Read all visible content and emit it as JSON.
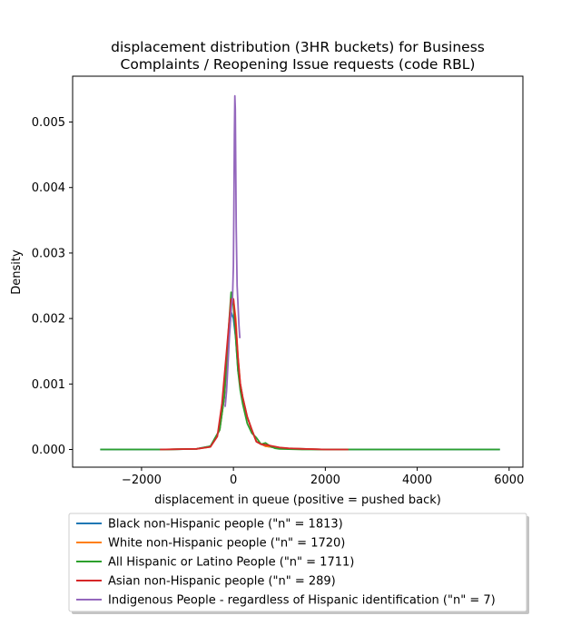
{
  "chart_data": {
    "type": "line",
    "title": "displacement distribution (3HR buckets) for Business\nComplaints / Reopening Issue requests (code RBL)",
    "xlabel": "displacement in queue (positive = pushed back)",
    "ylabel": "Density",
    "xlim": [
      -3500,
      6300
    ],
    "ylim": [
      -0.00027,
      0.0057
    ],
    "xticks": [
      -2000,
      0,
      2000,
      4000,
      6000
    ],
    "xtick_labels": [
      "−2000",
      "0",
      "2000",
      "4000",
      "6000"
    ],
    "yticks": [
      0.0,
      0.001,
      0.002,
      0.003,
      0.004,
      0.005
    ],
    "ytick_labels": [
      "0.000",
      "0.001",
      "0.002",
      "0.003",
      "0.004",
      "0.005"
    ],
    "grid": false,
    "legend_position": "below plot",
    "series": [
      {
        "name": "Black non-Hispanic people (\"n\" = 1813)",
        "color": "#1f77b4",
        "x": [
          -2900,
          -1500,
          -800,
          -500,
          -300,
          -200,
          -100,
          -50,
          0,
          50,
          100,
          150,
          200,
          300,
          400,
          500,
          700,
          1000,
          1500,
          2000,
          3000,
          4000,
          5000,
          5800
        ],
        "y": [
          0,
          0,
          1e-05,
          5e-05,
          0.0003,
          0.0008,
          0.0017,
          0.0021,
          0.002,
          0.0017,
          0.0012,
          0.001,
          0.0008,
          0.0005,
          0.0003,
          0.00012,
          5e-05,
          2e-05,
          1e-05,
          0,
          0,
          0,
          0,
          0
        ]
      },
      {
        "name": "White non-Hispanic people (\"n\" = 1720)",
        "color": "#ff7f0e",
        "x": [
          -1600,
          -800,
          -500,
          -300,
          -200,
          -100,
          -50,
          0,
          50,
          100,
          150,
          200,
          300,
          400,
          500,
          700,
          1000,
          1500,
          2000,
          2500
        ],
        "y": [
          0,
          1e-05,
          4e-05,
          0.0003,
          0.0008,
          0.0018,
          0.0022,
          0.0023,
          0.002,
          0.0014,
          0.001,
          0.0008,
          0.0005,
          0.0003,
          0.00012,
          5e-05,
          2e-05,
          1e-05,
          0,
          0
        ]
      },
      {
        "name": "All Hispanic or Latino People (\"n\" = 1711)",
        "color": "#2ca02c",
        "x": [
          -2900,
          -1500,
          -800,
          -500,
          -300,
          -200,
          -100,
          -50,
          0,
          50,
          100,
          150,
          200,
          300,
          400,
          500,
          600,
          700,
          800,
          900,
          1000,
          1500,
          2000,
          3000,
          4000,
          5000,
          5800
        ],
        "y": [
          0,
          0,
          1e-05,
          5e-05,
          0.0003,
          0.0008,
          0.0019,
          0.0024,
          0.0022,
          0.0017,
          0.0012,
          0.0009,
          0.0007,
          0.0004,
          0.00025,
          0.00018,
          8e-05,
          0.0001,
          5e-05,
          2e-05,
          1e-05,
          0,
          0,
          0,
          0,
          0,
          0
        ]
      },
      {
        "name": "Asian non-Hispanic people (\"n\" = 289)",
        "color": "#d62728",
        "x": [
          -1600,
          -800,
          -500,
          -350,
          -250,
          -150,
          -100,
          -50,
          0,
          50,
          100,
          150,
          200,
          300,
          400,
          500,
          600,
          800,
          1000,
          1200,
          1500,
          2000,
          2500
        ],
        "y": [
          0,
          1e-05,
          4e-05,
          0.0002,
          0.0007,
          0.0015,
          0.0019,
          0.0023,
          0.0023,
          0.0019,
          0.0014,
          0.001,
          0.0008,
          0.0005,
          0.0003,
          0.00012,
          8e-05,
          6e-05,
          3e-05,
          2e-05,
          1e-05,
          0,
          0
        ]
      },
      {
        "name": "Indigenous People - regardless of Hispanic identification (\"n\" = 7)",
        "color": "#9467bd",
        "x": [
          -180,
          -150,
          -120,
          -90,
          -60,
          -40,
          -20,
          0,
          10,
          20,
          30,
          40,
          50,
          60,
          80,
          100,
          120,
          140
        ],
        "y": [
          0.00065,
          0.0009,
          0.0013,
          0.0017,
          0.002,
          0.0022,
          0.0023,
          0.0028,
          0.0036,
          0.0048,
          0.0054,
          0.0052,
          0.0043,
          0.0034,
          0.0025,
          0.0022,
          0.0019,
          0.0017
        ]
      }
    ]
  }
}
